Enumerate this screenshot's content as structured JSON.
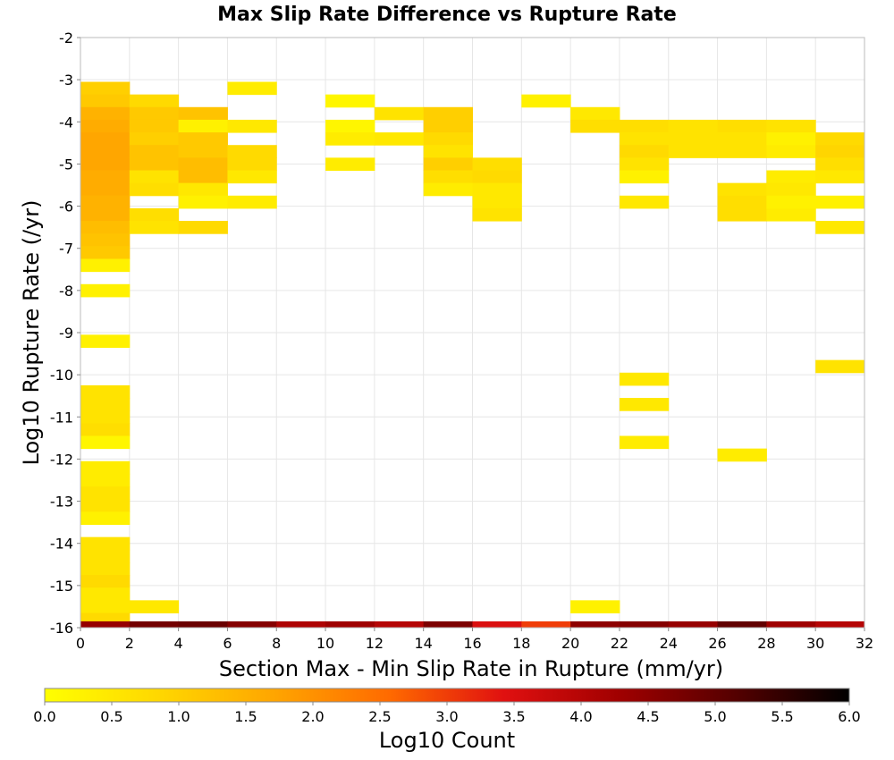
{
  "chart_data": {
    "type": "heatmap",
    "title": "Max Slip Rate Difference vs Rupture Rate",
    "xlabel": "Section Max - Min Slip Rate in Rupture (mm/yr)",
    "ylabel": "Log10 Rupture Rate (/yr)",
    "xlim": [
      0,
      32
    ],
    "ylim": [
      -16,
      -2
    ],
    "x_ticks": [
      "0",
      "2",
      "4",
      "6",
      "8",
      "10",
      "12",
      "14",
      "16",
      "18",
      "20",
      "22",
      "24",
      "26",
      "28",
      "30",
      "32"
    ],
    "y_ticks": [
      "-2",
      "-3",
      "-4",
      "-5",
      "-6",
      "-7",
      "-8",
      "-9",
      "-10",
      "-11",
      "-12",
      "-13",
      "-14",
      "-15",
      "-16"
    ],
    "grid": true,
    "bin_width_x": 2,
    "bin_height_y": 0.3,
    "colorbar": {
      "label": "Log10 Count",
      "range": [
        0,
        6
      ],
      "ticks": [
        "0.0",
        "0.5",
        "1.0",
        "1.5",
        "2.0",
        "2.5",
        "3.0",
        "3.5",
        "4.0",
        "4.5",
        "5.0",
        "5.5",
        "6.0"
      ],
      "stops": [
        "#ffff00",
        "#ffd700",
        "#ffa500",
        "#ff6a00",
        "#e01010",
        "#a00000",
        "#550000",
        "#000000"
      ]
    },
    "cells": [
      {
        "x": 0,
        "y": -3.2,
        "v": 1.0
      },
      {
        "x": 0,
        "y": -3.5,
        "v": 1.1
      },
      {
        "x": 0,
        "y": -3.8,
        "v": 1.5
      },
      {
        "x": 0,
        "y": -4.1,
        "v": 1.6
      },
      {
        "x": 0,
        "y": -4.4,
        "v": 1.7
      },
      {
        "x": 0,
        "y": -4.7,
        "v": 1.7
      },
      {
        "x": 0,
        "y": -5.0,
        "v": 1.7
      },
      {
        "x": 0,
        "y": -5.3,
        "v": 1.6
      },
      {
        "x": 0,
        "y": -5.6,
        "v": 1.6
      },
      {
        "x": 0,
        "y": -5.9,
        "v": 1.5
      },
      {
        "x": 0,
        "y": -6.2,
        "v": 1.5
      },
      {
        "x": 0,
        "y": -6.5,
        "v": 1.3
      },
      {
        "x": 0,
        "y": -6.8,
        "v": 1.2
      },
      {
        "x": 0,
        "y": -7.1,
        "v": 1.1
      },
      {
        "x": 0,
        "y": -7.4,
        "v": 0.3
      },
      {
        "x": 0,
        "y": -8.0,
        "v": 0.3
      },
      {
        "x": 0,
        "y": -9.2,
        "v": 0.3
      },
      {
        "x": 0,
        "y": -10.4,
        "v": 0.6
      },
      {
        "x": 0,
        "y": -10.7,
        "v": 0.6
      },
      {
        "x": 0,
        "y": -11.0,
        "v": 0.6
      },
      {
        "x": 0,
        "y": -11.3,
        "v": 0.7
      },
      {
        "x": 0,
        "y": -11.6,
        "v": 0.2
      },
      {
        "x": 0,
        "y": -12.2,
        "v": 0.4
      },
      {
        "x": 0,
        "y": -12.5,
        "v": 0.4
      },
      {
        "x": 0,
        "y": -12.8,
        "v": 0.6
      },
      {
        "x": 0,
        "y": -13.1,
        "v": 0.6
      },
      {
        "x": 0,
        "y": -13.4,
        "v": 0.3
      },
      {
        "x": 0,
        "y": -14.0,
        "v": 0.6
      },
      {
        "x": 0,
        "y": -14.3,
        "v": 0.6
      },
      {
        "x": 0,
        "y": -14.6,
        "v": 0.6
      },
      {
        "x": 0,
        "y": -14.9,
        "v": 0.8
      },
      {
        "x": 0,
        "y": -15.2,
        "v": 0.5
      },
      {
        "x": 0,
        "y": -15.5,
        "v": 0.5
      },
      {
        "x": 0,
        "y": -15.8,
        "v": 0.8
      },
      {
        "x": 2,
        "y": -3.5,
        "v": 0.8
      },
      {
        "x": 2,
        "y": -3.8,
        "v": 1.1
      },
      {
        "x": 2,
        "y": -4.1,
        "v": 1.1
      },
      {
        "x": 2,
        "y": -4.4,
        "v": 1.0
      },
      {
        "x": 2,
        "y": -4.7,
        "v": 1.2
      },
      {
        "x": 2,
        "y": -5.0,
        "v": 1.2
      },
      {
        "x": 2,
        "y": -5.3,
        "v": 0.6
      },
      {
        "x": 2,
        "y": -5.6,
        "v": 0.7
      },
      {
        "x": 2,
        "y": -6.2,
        "v": 0.7
      },
      {
        "x": 2,
        "y": -6.5,
        "v": 0.6
      },
      {
        "x": 2,
        "y": -15.5,
        "v": 0.5
      },
      {
        "x": 4,
        "y": -3.8,
        "v": 1.2
      },
      {
        "x": 4,
        "y": -4.1,
        "v": 0.3
      },
      {
        "x": 4,
        "y": -4.4,
        "v": 1.1
      },
      {
        "x": 4,
        "y": -4.7,
        "v": 1.1
      },
      {
        "x": 4,
        "y": -5.0,
        "v": 1.3
      },
      {
        "x": 4,
        "y": -5.3,
        "v": 1.3
      },
      {
        "x": 4,
        "y": -5.6,
        "v": 0.5
      },
      {
        "x": 4,
        "y": -5.9,
        "v": 0.3
      },
      {
        "x": 4,
        "y": -6.5,
        "v": 0.8
      },
      {
        "x": 6,
        "y": -3.2,
        "v": 0.4
      },
      {
        "x": 6,
        "y": -4.1,
        "v": 0.5
      },
      {
        "x": 6,
        "y": -4.7,
        "v": 0.8
      },
      {
        "x": 6,
        "y": -5.0,
        "v": 0.8
      },
      {
        "x": 6,
        "y": -5.3,
        "v": 0.5
      },
      {
        "x": 6,
        "y": -5.9,
        "v": 0.4
      },
      {
        "x": 10,
        "y": -3.5,
        "v": 0.2
      },
      {
        "x": 10,
        "y": -4.1,
        "v": 0.2
      },
      {
        "x": 10,
        "y": -4.4,
        "v": 0.4
      },
      {
        "x": 10,
        "y": -5.0,
        "v": 0.4
      },
      {
        "x": 12,
        "y": -3.8,
        "v": 0.6
      },
      {
        "x": 12,
        "y": -4.4,
        "v": 0.5
      },
      {
        "x": 14,
        "y": -3.8,
        "v": 1.0
      },
      {
        "x": 14,
        "y": -4.1,
        "v": 1.0
      },
      {
        "x": 14,
        "y": -4.4,
        "v": 0.8
      },
      {
        "x": 14,
        "y": -4.7,
        "v": 0.6
      },
      {
        "x": 14,
        "y": -5.0,
        "v": 1.0
      },
      {
        "x": 14,
        "y": -5.3,
        "v": 0.7
      },
      {
        "x": 14,
        "y": -5.6,
        "v": 0.4
      },
      {
        "x": 16,
        "y": -5.0,
        "v": 0.7
      },
      {
        "x": 16,
        "y": -5.3,
        "v": 0.8
      },
      {
        "x": 16,
        "y": -5.6,
        "v": 0.5
      },
      {
        "x": 16,
        "y": -5.9,
        "v": 0.5
      },
      {
        "x": 16,
        "y": -6.2,
        "v": 0.6
      },
      {
        "x": 18,
        "y": -3.5,
        "v": 0.3
      },
      {
        "x": 20,
        "y": -3.8,
        "v": 0.5
      },
      {
        "x": 20,
        "y": -4.1,
        "v": 0.7
      },
      {
        "x": 20,
        "y": -15.5,
        "v": 0.3
      },
      {
        "x": 22,
        "y": -4.1,
        "v": 0.7
      },
      {
        "x": 22,
        "y": -4.4,
        "v": 0.6
      },
      {
        "x": 22,
        "y": -4.7,
        "v": 0.8
      },
      {
        "x": 22,
        "y": -5.0,
        "v": 0.6
      },
      {
        "x": 22,
        "y": -5.3,
        "v": 0.3
      },
      {
        "x": 22,
        "y": -5.9,
        "v": 0.5
      },
      {
        "x": 22,
        "y": -10.1,
        "v": 0.5
      },
      {
        "x": 22,
        "y": -10.7,
        "v": 0.5
      },
      {
        "x": 22,
        "y": -11.6,
        "v": 0.4
      },
      {
        "x": 24,
        "y": -4.1,
        "v": 0.6
      },
      {
        "x": 24,
        "y": -4.4,
        "v": 0.6
      },
      {
        "x": 24,
        "y": -4.7,
        "v": 0.6
      },
      {
        "x": 26,
        "y": -4.1,
        "v": 0.7
      },
      {
        "x": 26,
        "y": -4.4,
        "v": 0.6
      },
      {
        "x": 26,
        "y": -4.7,
        "v": 0.6
      },
      {
        "x": 26,
        "y": -5.6,
        "v": 0.6
      },
      {
        "x": 26,
        "y": -5.9,
        "v": 0.7
      },
      {
        "x": 26,
        "y": -6.2,
        "v": 0.7
      },
      {
        "x": 26,
        "y": -11.9,
        "v": 0.4
      },
      {
        "x": 28,
        "y": -4.1,
        "v": 0.6
      },
      {
        "x": 28,
        "y": -4.4,
        "v": 0.3
      },
      {
        "x": 28,
        "y": -4.7,
        "v": 0.4
      },
      {
        "x": 28,
        "y": -5.3,
        "v": 0.4
      },
      {
        "x": 28,
        "y": -5.6,
        "v": 0.5
      },
      {
        "x": 28,
        "y": -6.2,
        "v": 0.4
      },
      {
        "x": 28,
        "y": -5.9,
        "v": 0.3
      },
      {
        "x": 30,
        "y": -4.4,
        "v": 0.8
      },
      {
        "x": 30,
        "y": -4.7,
        "v": 0.9
      },
      {
        "x": 30,
        "y": -5.0,
        "v": 0.7
      },
      {
        "x": 30,
        "y": -5.3,
        "v": 0.5
      },
      {
        "x": 30,
        "y": -5.9,
        "v": 0.3
      },
      {
        "x": 30,
        "y": -6.5,
        "v": 0.5
      },
      {
        "x": 30,
        "y": -9.8,
        "v": 0.6
      },
      {
        "x": 0,
        "y": -16.0,
        "v": 4.4
      },
      {
        "x": 2,
        "y": -16.0,
        "v": 4.8
      },
      {
        "x": 4,
        "y": -16.0,
        "v": 4.9
      },
      {
        "x": 6,
        "y": -16.0,
        "v": 4.6
      },
      {
        "x": 8,
        "y": -16.0,
        "v": 4.1
      },
      {
        "x": 10,
        "y": -16.0,
        "v": 4.3
      },
      {
        "x": 12,
        "y": -16.0,
        "v": 4.0
      },
      {
        "x": 14,
        "y": -16.0,
        "v": 4.7
      },
      {
        "x": 16,
        "y": -16.0,
        "v": 3.5
      },
      {
        "x": 18,
        "y": -16.0,
        "v": 3.0
      },
      {
        "x": 20,
        "y": -16.0,
        "v": 4.5
      },
      {
        "x": 22,
        "y": -16.0,
        "v": 4.6
      },
      {
        "x": 24,
        "y": -16.0,
        "v": 4.4
      },
      {
        "x": 26,
        "y": -16.0,
        "v": 5.0
      },
      {
        "x": 28,
        "y": -16.0,
        "v": 4.3
      },
      {
        "x": 30,
        "y": -16.0,
        "v": 4.0
      }
    ]
  }
}
